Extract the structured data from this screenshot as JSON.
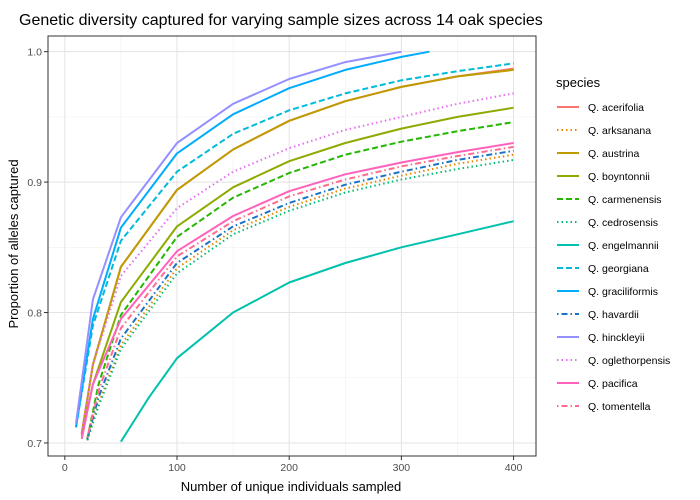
{
  "chart_data": {
    "type": "line",
    "title": "Genetic diversity captured for varying sample sizes across 14 oak species",
    "xlabel": "Number of unique individuals sampled",
    "ylabel": "Proportion of alleles captured",
    "xlim": [
      -15,
      420
    ],
    "ylim": [
      0.69,
      1.012
    ],
    "x_ticks": [
      0,
      100,
      200,
      300,
      400
    ],
    "x_tick_labels": [
      "0",
      "100",
      "200",
      "300",
      "400"
    ],
    "y_ticks": [
      0.7,
      0.8,
      0.9,
      1.0
    ],
    "y_tick_labels": [
      "0.7",
      "0.8",
      "0.9",
      "1.0"
    ],
    "grid": true,
    "legend": {
      "title": "species",
      "position": "right"
    },
    "series": [
      {
        "name": "Q. acerifolia",
        "color": "#F8766D",
        "dash": "solid",
        "x": [
          15,
          25,
          50,
          100,
          150,
          200,
          250,
          300,
          350,
          400
        ],
        "y": [
          0.707,
          0.76,
          0.835,
          0.894,
          0.925,
          0.947,
          0.962,
          0.973,
          0.981,
          0.987
        ]
      },
      {
        "name": "Q. arksanana",
        "color": "#E18A00",
        "dash": "dotted",
        "x": [
          20,
          30,
          50,
          100,
          150,
          200,
          250,
          300,
          350,
          400
        ],
        "y": [
          0.702,
          0.73,
          0.775,
          0.834,
          0.863,
          0.881,
          0.895,
          0.905,
          0.914,
          0.921
        ]
      },
      {
        "name": "Q. austrina",
        "color": "#BE9C00",
        "dash": "solid",
        "x": [
          15,
          25,
          50,
          100,
          150,
          200,
          250,
          300,
          350,
          400
        ],
        "y": [
          0.707,
          0.76,
          0.835,
          0.894,
          0.925,
          0.947,
          0.962,
          0.973,
          0.981,
          0.986
        ]
      },
      {
        "name": "Q. boyntonnii",
        "color": "#8CAB00",
        "dash": "solid",
        "x": [
          15,
          25,
          50,
          100,
          150,
          200,
          250,
          300,
          350,
          400
        ],
        "y": [
          0.705,
          0.745,
          0.808,
          0.866,
          0.896,
          0.916,
          0.93,
          0.941,
          0.95,
          0.957
        ]
      },
      {
        "name": "Q. carmenensis",
        "color": "#24B700",
        "dash": "dashed",
        "x": [
          20,
          30,
          50,
          100,
          150,
          200,
          250,
          300,
          350,
          400
        ],
        "y": [
          0.703,
          0.745,
          0.798,
          0.858,
          0.888,
          0.907,
          0.921,
          0.931,
          0.939,
          0.946
        ]
      },
      {
        "name": "Q. cedrosensis",
        "color": "#00BE70",
        "dash": "dotted",
        "x": [
          20,
          30,
          50,
          100,
          150,
          200,
          250,
          300,
          350,
          400
        ],
        "y": [
          0.702,
          0.728,
          0.772,
          0.83,
          0.86,
          0.878,
          0.892,
          0.902,
          0.91,
          0.917
        ]
      },
      {
        "name": "Q. engelmannii",
        "color": "#00C1AB",
        "dash": "solid",
        "x": [
          50,
          75,
          100,
          150,
          200,
          250,
          300,
          350,
          400
        ],
        "y": [
          0.701,
          0.735,
          0.765,
          0.8,
          0.823,
          0.838,
          0.85,
          0.86,
          0.87
        ]
      },
      {
        "name": "Q. georgiana",
        "color": "#00BBDA",
        "dash": "dashed",
        "x": [
          10,
          25,
          50,
          100,
          150,
          200,
          250,
          300,
          350,
          400
        ],
        "y": [
          0.712,
          0.79,
          0.855,
          0.908,
          0.937,
          0.955,
          0.968,
          0.978,
          0.985,
          0.991
        ]
      },
      {
        "name": "Q. graciliformis",
        "color": "#00ACFC",
        "dash": "solid",
        "x": [
          10,
          25,
          50,
          100,
          150,
          200,
          250,
          300,
          325
        ],
        "y": [
          0.712,
          0.795,
          0.865,
          0.922,
          0.952,
          0.972,
          0.986,
          0.996,
          1.0
        ]
      },
      {
        "name": "Q. havardii",
        "color": "#1A73C6",
        "dash": "dotdash",
        "x": [
          20,
          30,
          50,
          100,
          150,
          200,
          250,
          300,
          350,
          400
        ],
        "y": [
          0.703,
          0.735,
          0.78,
          0.838,
          0.866,
          0.884,
          0.898,
          0.908,
          0.917,
          0.924
        ]
      },
      {
        "name": "Q. hinckleyii",
        "color": "#9590FF",
        "dash": "solid",
        "x": [
          10,
          25,
          50,
          100,
          150,
          200,
          250,
          300
        ],
        "y": [
          0.715,
          0.81,
          0.873,
          0.93,
          0.96,
          0.979,
          0.992,
          1.0
        ]
      },
      {
        "name": "Q. oglethorpensis",
        "color": "#E76BF3",
        "dash": "dotted",
        "x": [
          15,
          25,
          50,
          100,
          150,
          200,
          250,
          300,
          350,
          400
        ],
        "y": [
          0.708,
          0.76,
          0.828,
          0.88,
          0.908,
          0.926,
          0.94,
          0.95,
          0.96,
          0.968
        ]
      },
      {
        "name": "Q. pacifica",
        "color": "#FF62BC",
        "dash": "solid",
        "x": [
          15,
          25,
          50,
          100,
          150,
          200,
          250,
          300,
          350,
          400
        ],
        "y": [
          0.703,
          0.745,
          0.795,
          0.847,
          0.874,
          0.893,
          0.906,
          0.915,
          0.923,
          0.93
        ]
      },
      {
        "name": "Q. tomentella",
        "color": "#FF6C91",
        "dash": "dotdash",
        "x": [
          20,
          30,
          50,
          100,
          150,
          200,
          250,
          300,
          350,
          400
        ],
        "y": [
          0.704,
          0.74,
          0.788,
          0.843,
          0.87,
          0.889,
          0.902,
          0.912,
          0.92,
          0.927
        ]
      }
    ]
  }
}
